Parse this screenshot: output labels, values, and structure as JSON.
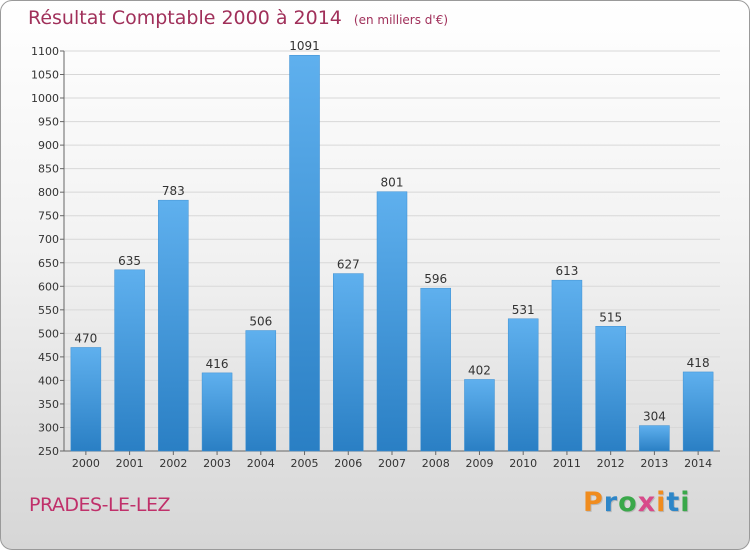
{
  "header": {
    "title": "Résultat Comptable 2000 à 2014",
    "unit": "(en milliers d'€)"
  },
  "footer": {
    "town": "PRADES-LE-LEZ",
    "logo": "Proxiti"
  },
  "colors": {
    "title": "#a0305a",
    "bar_light": "#5fb0ee",
    "bar_dark": "#2a7fc4",
    "logo": [
      "#f08c1e",
      "#2d86c8",
      "#3aa84a",
      "#d84a8a"
    ]
  },
  "chart_data": {
    "type": "bar",
    "title": "Résultat Comptable 2000 à 2014",
    "subtitle": "(en milliers d'€)",
    "xlabel": "",
    "ylabel": "",
    "categories": [
      "2000",
      "2001",
      "2002",
      "2003",
      "2004",
      "2005",
      "2006",
      "2007",
      "2008",
      "2009",
      "2010",
      "2011",
      "2012",
      "2013",
      "2014"
    ],
    "values": [
      470,
      635,
      783,
      416,
      506,
      1091,
      627,
      801,
      596,
      402,
      531,
      613,
      515,
      304,
      418
    ],
    "ylim": [
      250,
      1100
    ],
    "yticks": [
      250,
      300,
      350,
      400,
      450,
      500,
      550,
      600,
      650,
      700,
      750,
      800,
      850,
      900,
      950,
      1000,
      1050,
      1100
    ],
    "grid": true,
    "legend": "none"
  }
}
